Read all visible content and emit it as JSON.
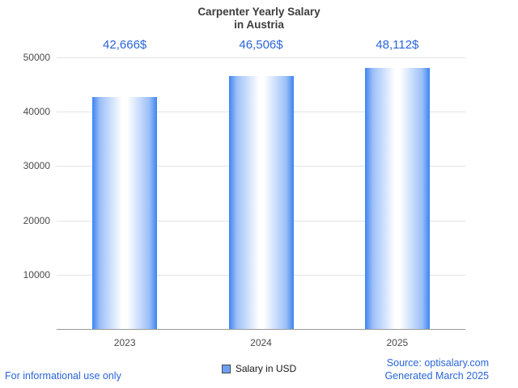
{
  "chart_data": {
    "type": "bar",
    "title": "Carpenter Yearly Salary\nin Austria",
    "categories": [
      "2023",
      "2024",
      "2025"
    ],
    "values": [
      42666,
      46506,
      48112
    ],
    "value_labels": [
      "42,666$",
      "46,506$",
      "48,112$"
    ],
    "xlabel": "",
    "ylabel": "",
    "ylim": [
      0,
      50000
    ],
    "yticks": [
      10000,
      20000,
      30000,
      40000,
      50000
    ],
    "grid": true,
    "legend": {
      "label": "Salary in USD",
      "position": "bottom-center"
    }
  },
  "colors": {
    "accent_blue": "#2a65d9",
    "bar_edge": "#3d85f0",
    "bar_mid": "#9cc0f8",
    "bar_center": "#ffffff",
    "grid_line": "#e3e3e3",
    "axis_line": "#9a9a9a",
    "tick_text": "#4a4a4a",
    "title_text": "#3d3d3d",
    "legend_marker_fill": "#6d9ff2"
  },
  "footer": {
    "left": "For informational use only",
    "source": "Source: optisalary.com",
    "generated": "Generated March 2025"
  }
}
